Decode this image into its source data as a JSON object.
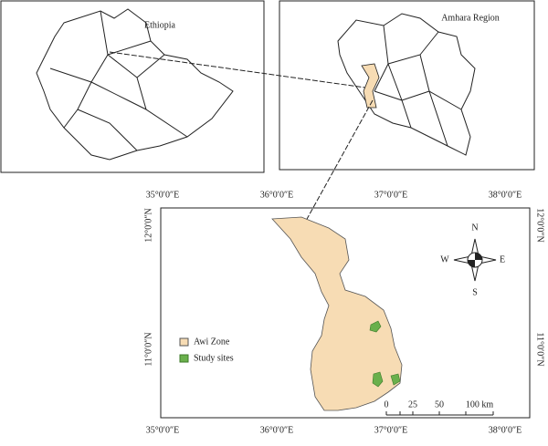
{
  "panels": {
    "ethiopia": {
      "label": "Ethiopia"
    },
    "amhara": {
      "label": "Amhara Region"
    }
  },
  "map": {
    "top_labels": [
      "35°0′0″E",
      "36°0′0″E",
      "37°0′0″E",
      "38°0′0″E"
    ],
    "bottom_labels": [
      "35°0′0″E",
      "36°0′0″E",
      "37°0′0″E",
      "38°0′0″E"
    ],
    "left_labels": [
      "12°0′0″N",
      "11°0′0″N"
    ],
    "right_labels": [
      "12°0′0″N",
      "11°0′0″N"
    ],
    "legend": [
      "Awi Zone",
      "Study sites"
    ],
    "compass": {
      "n": "N",
      "s": "S",
      "e": "E",
      "w": "W"
    },
    "scale": [
      "0",
      "25",
      "50",
      "100 km"
    ]
  }
}
